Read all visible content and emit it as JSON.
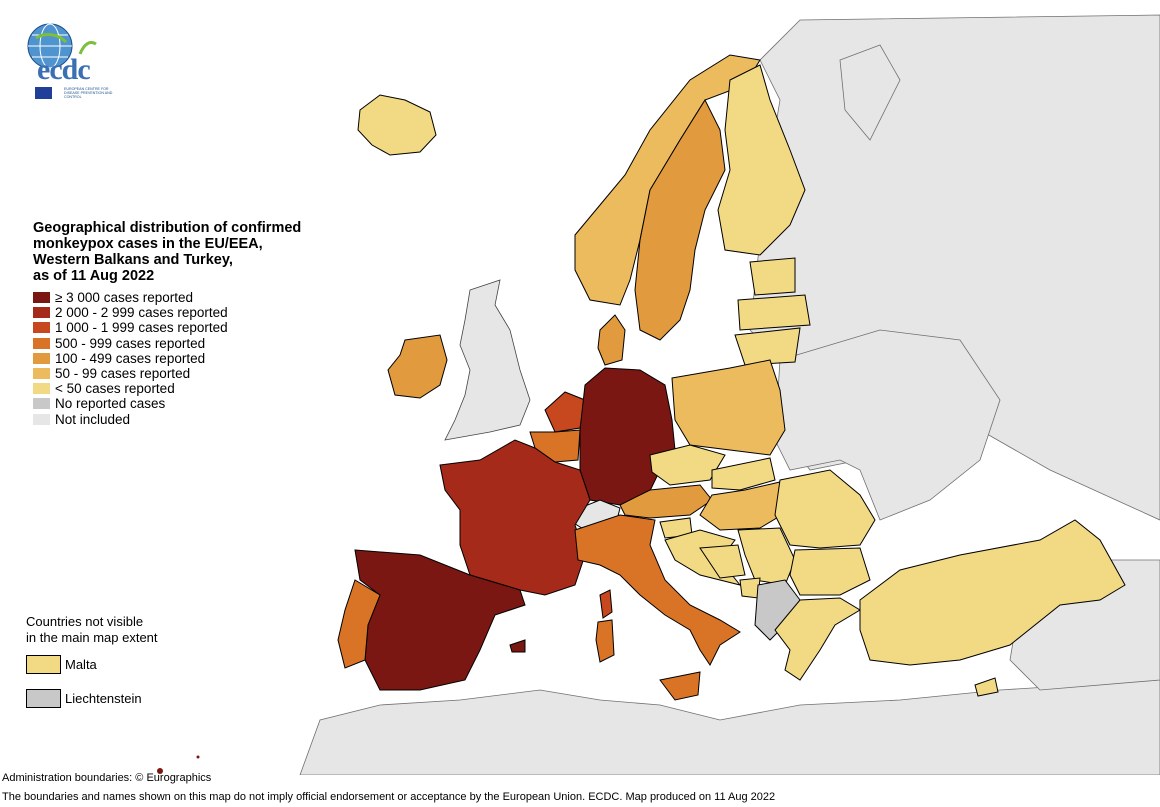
{
  "logo": {
    "word": "ecdc",
    "subtitle": "EUROPEAN CENTRE FOR DISEASE PREVENTION AND CONTROL"
  },
  "legend": {
    "title_lines": [
      "Geographical distribution of confirmed",
      "monkeypox cases in the EU/EEA,",
      "Western Balkans and Turkey,",
      "as of 11 Aug 2022"
    ],
    "items": [
      {
        "label": "≥ 3 000 cases reported",
        "color": "#7a1712"
      },
      {
        "label": "2 000 - 2 999 cases reported",
        "color": "#a52a1a"
      },
      {
        "label": "1 000 - 1 999 cases reported",
        "color": "#c7471e"
      },
      {
        "label": "500 - 999 cases reported",
        "color": "#d97427"
      },
      {
        "label": "100 - 499 cases reported",
        "color": "#e19a3d"
      },
      {
        "label": "50 - 99 cases reported",
        "color": "#ecbb5e"
      },
      {
        "label": "< 50 cases reported",
        "color": "#f2d983"
      },
      {
        "label": "No reported cases",
        "color": "#c8c8c8"
      },
      {
        "label": "Not included",
        "color": "#e6e6e6"
      }
    ]
  },
  "not_visible": {
    "title_lines": [
      "Countries not visible",
      "in the main map extent"
    ],
    "items": [
      {
        "label": "Malta",
        "color": "#f2d983"
      },
      {
        "label": "Liechtenstein",
        "color": "#c8c8c8"
      }
    ]
  },
  "footer": {
    "line1": "Administration boundaries: © Eurographics",
    "line2": "The boundaries and names shown on this map do not imply official endorsement or acceptance by the European Union. ECDC. Map produced on 11 Aug 2022"
  },
  "map_regions": [
    {
      "name": "Spain",
      "category": "≥ 3 000 cases reported"
    },
    {
      "name": "Germany",
      "category": "≥ 3 000 cases reported"
    },
    {
      "name": "France",
      "category": "2 000 - 2 999 cases reported"
    },
    {
      "name": "Netherlands",
      "category": "1 000 - 1 999 cases reported"
    },
    {
      "name": "Portugal",
      "category": "500 - 999 cases reported"
    },
    {
      "name": "Italy",
      "category": "500 - 999 cases reported"
    },
    {
      "name": "Belgium",
      "category": "500 - 999 cases reported"
    },
    {
      "name": "Sweden",
      "category": "100 - 499 cases reported"
    },
    {
      "name": "Denmark",
      "category": "100 - 499 cases reported"
    },
    {
      "name": "Ireland",
      "category": "100 - 499 cases reported"
    },
    {
      "name": "Austria",
      "category": "100 - 499 cases reported"
    },
    {
      "name": "Norway",
      "category": "50 - 99 cases reported"
    },
    {
      "name": "Poland",
      "category": "50 - 99 cases reported"
    },
    {
      "name": "Hungary",
      "category": "50 - 99 cases reported"
    },
    {
      "name": "Finland",
      "category": "< 50 cases reported"
    },
    {
      "name": "Iceland",
      "category": "< 50 cases reported"
    },
    {
      "name": "Baltic states",
      "category": "< 50 cases reported"
    },
    {
      "name": "Czechia",
      "category": "< 50 cases reported"
    },
    {
      "name": "Slovakia",
      "category": "< 50 cases reported"
    },
    {
      "name": "Romania",
      "category": "< 50 cases reported"
    },
    {
      "name": "Bulgaria",
      "category": "< 50 cases reported"
    },
    {
      "name": "Greece",
      "category": "< 50 cases reported"
    },
    {
      "name": "Turkey",
      "category": "< 50 cases reported"
    },
    {
      "name": "Balkans",
      "category": "< 50 cases reported"
    },
    {
      "name": "Cyprus",
      "category": "< 50 cases reported"
    },
    {
      "name": "Switzerland",
      "category": "Not included"
    },
    {
      "name": "United Kingdom",
      "category": "Not included"
    },
    {
      "name": "North Macedonia / Albania",
      "category": "No reported cases"
    }
  ]
}
